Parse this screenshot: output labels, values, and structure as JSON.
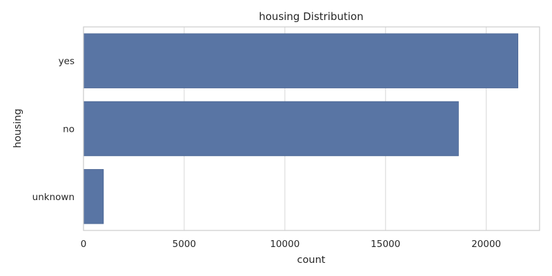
{
  "chart_data": {
    "type": "bar",
    "orientation": "horizontal",
    "title": "housing Distribution",
    "xlabel": "count",
    "ylabel": "housing",
    "categories": [
      "yes",
      "no",
      "unknown"
    ],
    "values": [
      21576,
      18622,
      990
    ],
    "xlim": [
      0,
      22650
    ],
    "xticks": [
      0,
      5000,
      10000,
      15000,
      20000
    ],
    "grid": true,
    "bar_color": "#5975a4",
    "bar_edge_color": "#4a6593"
  }
}
